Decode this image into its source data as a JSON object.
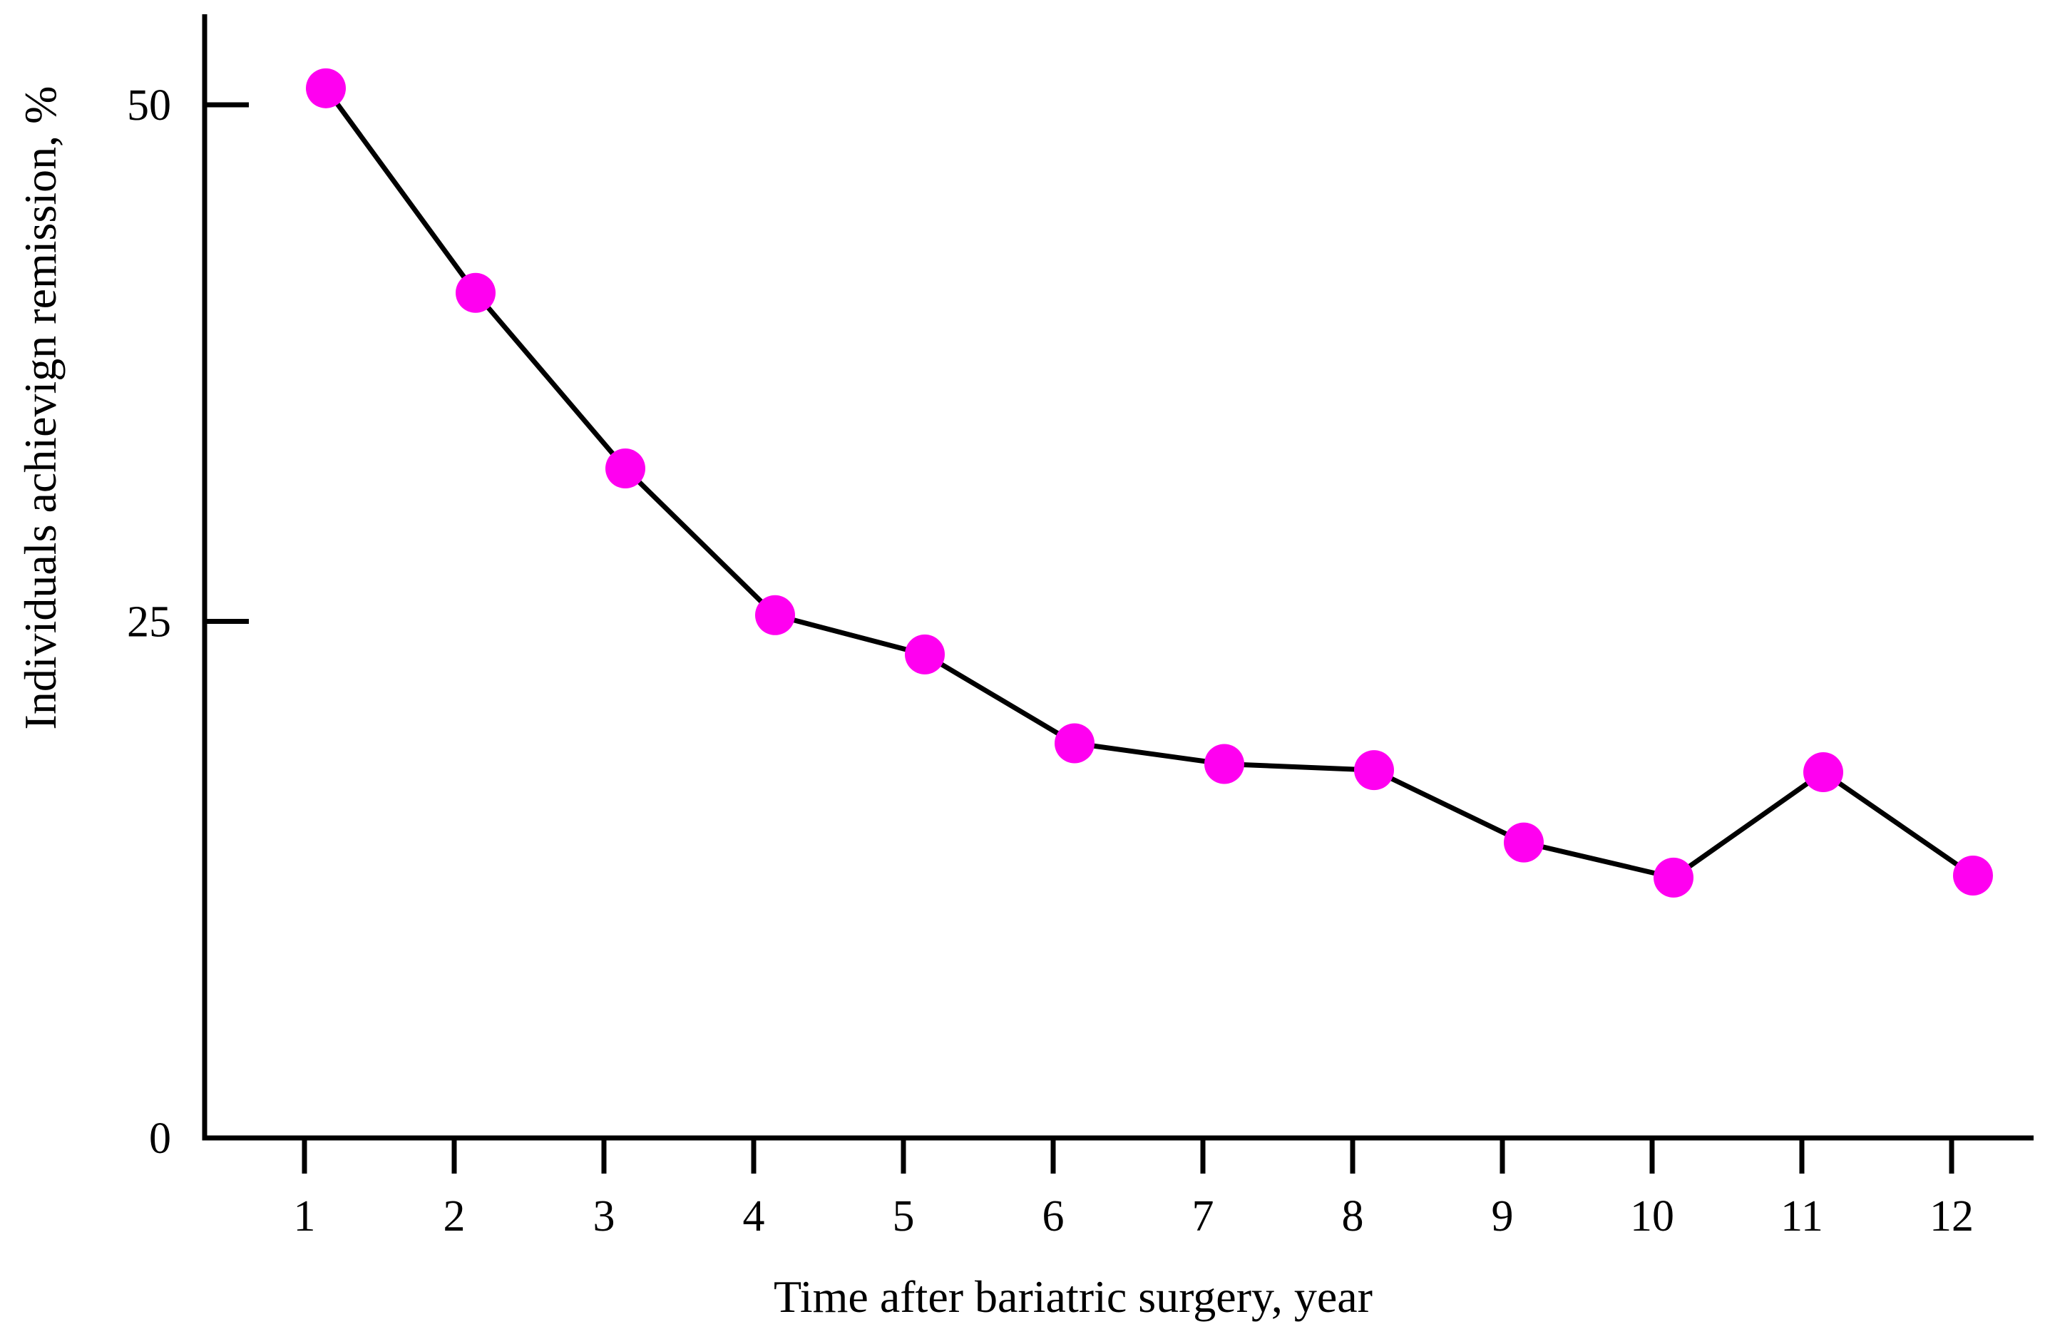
{
  "chart_data": {
    "type": "line",
    "title": "",
    "x": [
      1,
      2,
      3,
      4,
      5,
      6,
      7,
      8,
      9,
      10,
      11,
      12
    ],
    "values": [
      50.8,
      40.9,
      32.4,
      25.3,
      23.4,
      19.1,
      18.1,
      17.8,
      14.3,
      12.6,
      17.7,
      12.7
    ],
    "xlabel": "Time after bariatric surgery, year",
    "ylabel": "Individuals achievign remission, %",
    "xticks": [
      1,
      2,
      3,
      4,
      5,
      6,
      7,
      8,
      9,
      10,
      11,
      12
    ],
    "yticks": [
      0,
      25,
      50
    ],
    "xlim": [
      0.33,
      12.55
    ],
    "ylim": [
      0,
      54.4
    ],
    "grid": false,
    "legend_position": "none",
    "series_count": 1,
    "marker": "circle",
    "marker_color": "#FF00F0",
    "line_color": "#000000",
    "axis_color": "#000000",
    "background_color": "#FFFFFF"
  }
}
